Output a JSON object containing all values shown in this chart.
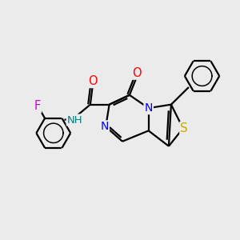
{
  "background_color": "#ebebeb",
  "bond_color": "#000000",
  "bond_width": 1.6,
  "atom_colors": {
    "N": "#0000ff",
    "O": "#ff0000",
    "S": "#ccaa00",
    "F": "#cc00cc",
    "C": "#000000",
    "H": "#008080"
  },
  "font_size": 9.5,
  "fig_size": [
    3.0,
    3.0
  ],
  "dpi": 100
}
